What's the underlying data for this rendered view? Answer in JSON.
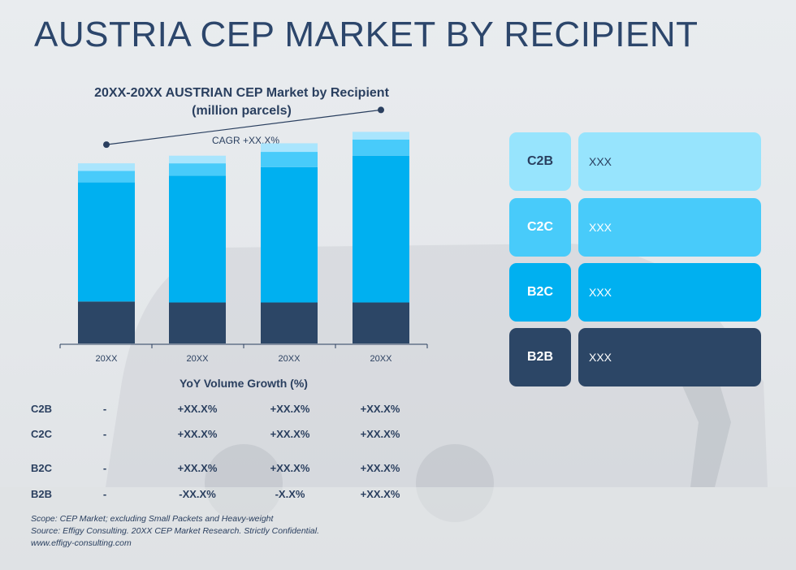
{
  "page_title": "AUSTRIA CEP MARKET BY RECIPIENT",
  "chart_data": {
    "type": "bar",
    "stacked": true,
    "title": "20XX-20XX AUSTRIAN CEP Market by Recipient",
    "subtitle": "(million parcels)",
    "categories": [
      "20XX",
      "20XX",
      "20XX",
      "20XX"
    ],
    "series": [
      {
        "name": "B2B",
        "color": "#2c4666",
        "values": [
          44,
          43,
          43,
          43
        ]
      },
      {
        "name": "B2C",
        "color": "#00b0f0",
        "values": [
          125,
          133,
          142,
          154
        ]
      },
      {
        "name": "C2C",
        "color": "#48cbfa",
        "values": [
          12,
          13,
          16,
          17
        ]
      },
      {
        "name": "C2B",
        "color": "#a9e5fd",
        "values": [
          8,
          8,
          9,
          8
        ]
      }
    ],
    "annotation": "CAGR +XX.X%",
    "xlabel": "",
    "ylabel": "",
    "ylim": [
      0,
      230
    ],
    "grid": false,
    "legend": "right"
  },
  "yoy": {
    "title": "YoY Volume Growth (%)",
    "rows": [
      {
        "label": "C2B",
        "values": [
          "-",
          "+XX.X%",
          "+XX.X%",
          "+XX.X%"
        ]
      },
      {
        "label": "C2C",
        "values": [
          "-",
          "+XX.X%",
          "+XX.X%",
          "+XX.X%"
        ]
      },
      {
        "label": "B2C",
        "values": [
          "-",
          "+XX.X%",
          "+XX.X%",
          "+XX.X%"
        ]
      },
      {
        "label": "B2B",
        "values": [
          "-",
          "-XX.X%",
          "-X.X%",
          "+XX.X%"
        ]
      }
    ]
  },
  "legend": [
    {
      "code": "C2B",
      "value": "XXX",
      "color": "#97e4fd",
      "text_color": "#2a3f5f"
    },
    {
      "code": "C2C",
      "value": "XXX",
      "color": "#48cbfa",
      "text_color": "#ffffff"
    },
    {
      "code": "B2C",
      "value": "XXX",
      "color": "#00b0f0",
      "text_color": "#ffffff"
    },
    {
      "code": "B2B",
      "value": "XXX",
      "color": "#2c4666",
      "text_color": "#ffffff"
    }
  ],
  "footnotes": {
    "scope": "Scope: CEP Market; excluding Small Packets and Heavy-weight",
    "source": "Source: Effigy Consulting. 20XX CEP Market Research. Strictly Confidential.",
    "website": "www.effigy-consulting.com"
  }
}
